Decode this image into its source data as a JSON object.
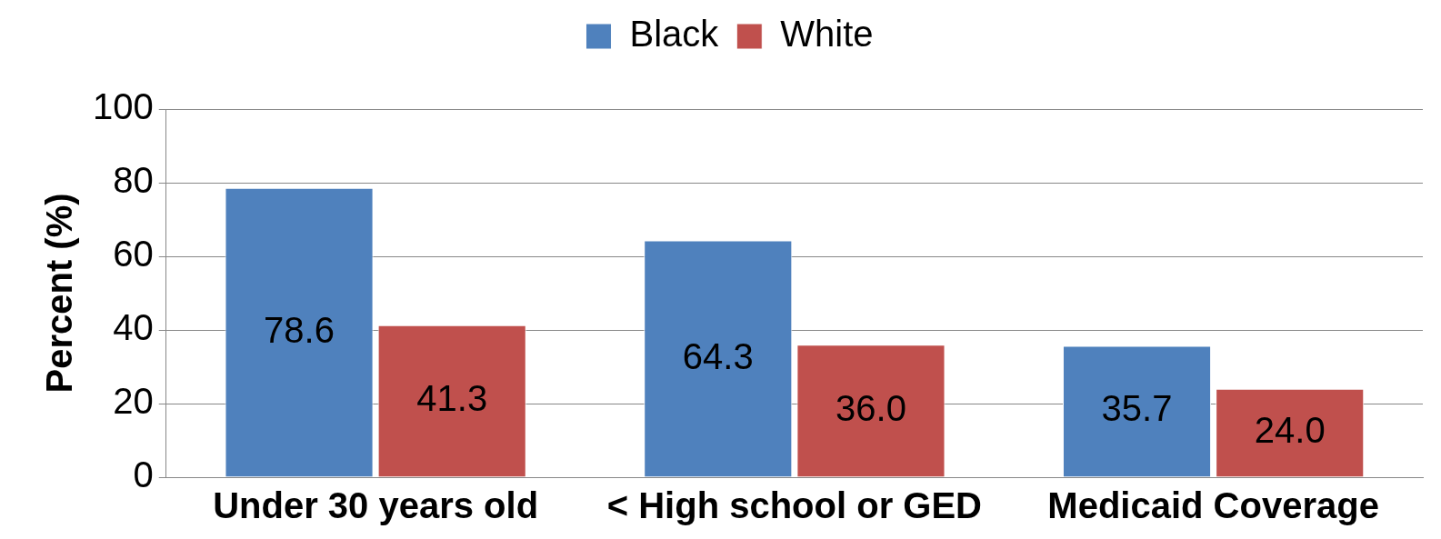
{
  "chart_data": {
    "type": "bar",
    "ylabel": "Percent (%)",
    "categories": [
      "Under 30 years old",
      "< High school or GED",
      "Medicaid Coverage"
    ],
    "series": [
      {
        "name": "Black",
        "color": "#4f81bd",
        "values": [
          78.6,
          64.3,
          35.7
        ],
        "value_labels": [
          "78.6",
          "64.3",
          "35.7"
        ]
      },
      {
        "name": "White",
        "color": "#c0504d",
        "values": [
          41.3,
          36.0,
          24.0
        ],
        "value_labels": [
          "41.3",
          "36.0",
          "24.0"
        ]
      }
    ],
    "ylim": [
      0,
      100
    ],
    "yticks": [
      0,
      20,
      40,
      60,
      80,
      100
    ],
    "grid": "y",
    "legend": "top"
  }
}
